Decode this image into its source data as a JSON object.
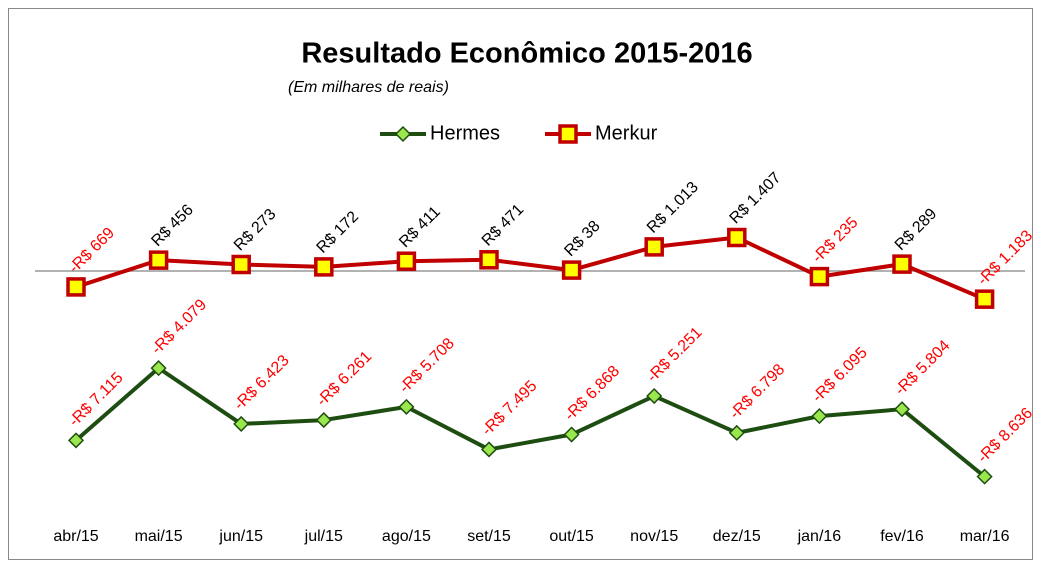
{
  "chart_data": {
    "type": "line",
    "title": "Resultado Econômico 2015-2016",
    "subtitle": "(Em milhares de reais)",
    "categories": [
      "abr/15",
      "mai/15",
      "jun/15",
      "jul/15",
      "ago/15",
      "set/15",
      "out/15",
      "nov/15",
      "dez/15",
      "jan/16",
      "fev/16",
      "mar/16"
    ],
    "series": [
      {
        "name": "Hermes",
        "color": "#1e4d12",
        "marker_fill": "#99e64d",
        "marker": "diamond",
        "values": [
          -7115,
          -4079,
          -6423,
          -6261,
          -5708,
          -7495,
          -6868,
          -5251,
          -6798,
          -6095,
          -5804,
          -8636
        ],
        "value_labels": [
          "-R$ 7.115",
          "-R$ 4.079",
          "-R$ 6.423",
          "-R$ 6.261",
          "-R$ 5.708",
          "-R$ 7.495",
          "-R$ 6.868",
          "-R$ 5.251",
          "-R$ 6.798",
          "-R$ 6.095",
          "-R$ 5.804",
          "-R$ 8.636"
        ]
      },
      {
        "name": "Merkur",
        "color": "#c00000",
        "marker_fill": "#ffff00",
        "marker": "square",
        "values": [
          -669,
          456,
          273,
          172,
          411,
          471,
          38,
          1013,
          1407,
          -235,
          289,
          -1183
        ],
        "value_labels": [
          "-R$ 669",
          "R$ 456",
          "R$ 273",
          "R$ 172",
          "R$ 411",
          "R$ 471",
          "R$ 38",
          "R$ 1.013",
          "R$ 1.407",
          "-R$ 235",
          "R$ 289",
          "-R$ 1.183"
        ]
      }
    ],
    "ylim": [
      -10500,
      10500
    ],
    "legend": "top"
  }
}
